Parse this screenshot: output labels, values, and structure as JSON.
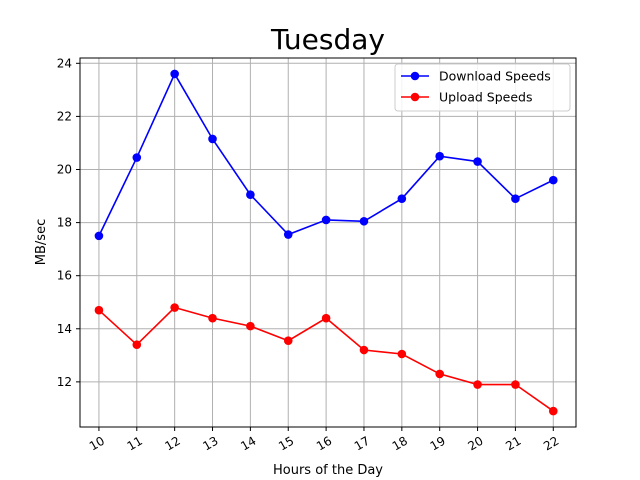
{
  "chart_data": {
    "type": "line",
    "title": "Tuesday",
    "xlabel": "Hours of the Day",
    "ylabel": "MB/sec",
    "x": [
      10,
      11,
      12,
      13,
      14,
      15,
      16,
      17,
      18,
      19,
      20,
      21,
      22
    ],
    "x_tick_labels": [
      "10",
      "11",
      "12",
      "13",
      "14",
      "15",
      "16",
      "17",
      "18",
      "19",
      "20",
      "21",
      "22"
    ],
    "y_ticks": [
      12,
      14,
      16,
      18,
      20,
      22,
      24
    ],
    "y_tick_labels": [
      "12",
      "14",
      "16",
      "18",
      "20",
      "22",
      "24"
    ],
    "xlim": [
      9.5,
      22.6
    ],
    "ylim": [
      10.3,
      24.2
    ],
    "grid": true,
    "legend_position": "upper right",
    "series": [
      {
        "name": "Download Speeds",
        "color": "#0000ff",
        "marker": "circle",
        "values": [
          17.5,
          20.45,
          23.6,
          21.15,
          19.05,
          17.55,
          18.1,
          18.05,
          18.9,
          20.5,
          20.3,
          18.9,
          19.6
        ]
      },
      {
        "name": "Upload Speeds",
        "color": "#ff0000",
        "marker": "circle",
        "values": [
          14.7,
          13.4,
          14.8,
          14.4,
          14.1,
          13.55,
          14.4,
          13.2,
          13.05,
          12.3,
          11.9,
          11.9,
          10.9
        ]
      }
    ]
  }
}
